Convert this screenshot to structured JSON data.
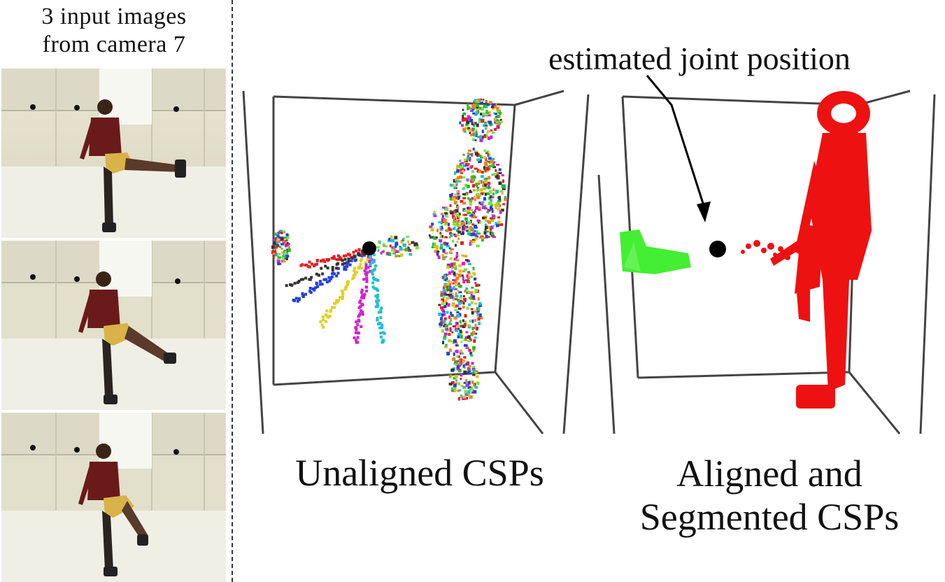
{
  "left_panel": {
    "title_line1": "3 input images",
    "title_line2": "from camera 7"
  },
  "annotation": "estimated joint position",
  "captions": {
    "unaligned": "Unaligned CSPs",
    "aligned_line1": "Aligned and",
    "aligned_line2": "Segmented CSPs"
  },
  "colors": {
    "aligned_body": "#ee1111",
    "aligned_foot": "#44ee33",
    "joint_marker": "#000000",
    "shorts": "#d9b24a",
    "shirt": "#6a1a1a"
  },
  "frames": [
    {
      "kick": "high"
    },
    {
      "kick": "mid"
    },
    {
      "kick": "low"
    }
  ]
}
